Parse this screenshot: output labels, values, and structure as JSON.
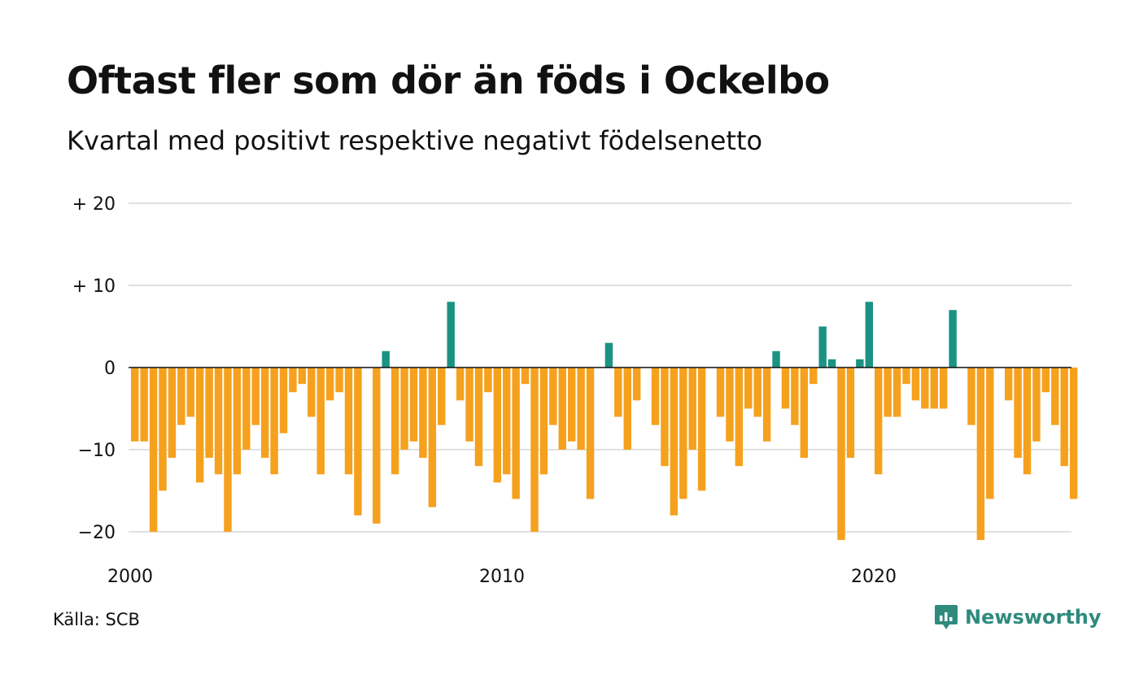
{
  "title": "Oftast fler som dör än föds i Ockelbo",
  "subtitle": "Kvartal med positivt respektive negativt födelsenetto",
  "source": "Källa: SCB",
  "brand": {
    "name": "Newsworthy",
    "icon": "newsworthy-logo-icon",
    "color": "#2e8b7e"
  },
  "chart_data": {
    "type": "bar",
    "x_start": "2000 Q1",
    "x_end": "2025 Q2",
    "xticks": [
      {
        "label": "2000",
        "x": 2000
      },
      {
        "label": "2010",
        "x": 2010
      },
      {
        "label": "2020",
        "x": 2020
      }
    ],
    "yticks": [
      {
        "label": "+ 20",
        "value": 20
      },
      {
        "label": "+ 10",
        "value": 10
      },
      {
        "label": "0",
        "value": 0
      },
      {
        "label": "−10",
        "value": -10
      },
      {
        "label": "−20",
        "value": -20
      }
    ],
    "ylim": [
      -22,
      20
    ],
    "grid": true,
    "colors": {
      "positive": "#1a9383",
      "negative": "#f5a11e",
      "grid": "#e0e0e0",
      "zero": "#111111"
    },
    "values": [
      -9,
      -9,
      -20,
      -15,
      -11,
      -7,
      -6,
      -14,
      -11,
      -13,
      -20,
      -13,
      -10,
      -7,
      -11,
      -13,
      -8,
      -3,
      -2,
      -6,
      -13,
      -4,
      -3,
      -13,
      -18,
      0,
      -19,
      2,
      -13,
      -10,
      -9,
      -11,
      -17,
      -7,
      8,
      -4,
      -9,
      -12,
      -3,
      -14,
      -13,
      -16,
      -2,
      -20,
      -13,
      -7,
      -10,
      -9,
      -10,
      -16,
      0,
      3,
      -6,
      -10,
      -4,
      0,
      -7,
      -12,
      -18,
      -16,
      -10,
      -15,
      0,
      -6,
      -9,
      -12,
      -5,
      -6,
      -9,
      2,
      -5,
      -7,
      -11,
      -2,
      5,
      1,
      -21,
      -11,
      1,
      8,
      -13,
      -6,
      -6,
      -2,
      -4,
      -5,
      -5,
      -5,
      7,
      0,
      -7,
      -21,
      -16,
      0,
      -4,
      -11,
      -13,
      -9,
      -3,
      -7,
      -12,
      -16
    ]
  }
}
